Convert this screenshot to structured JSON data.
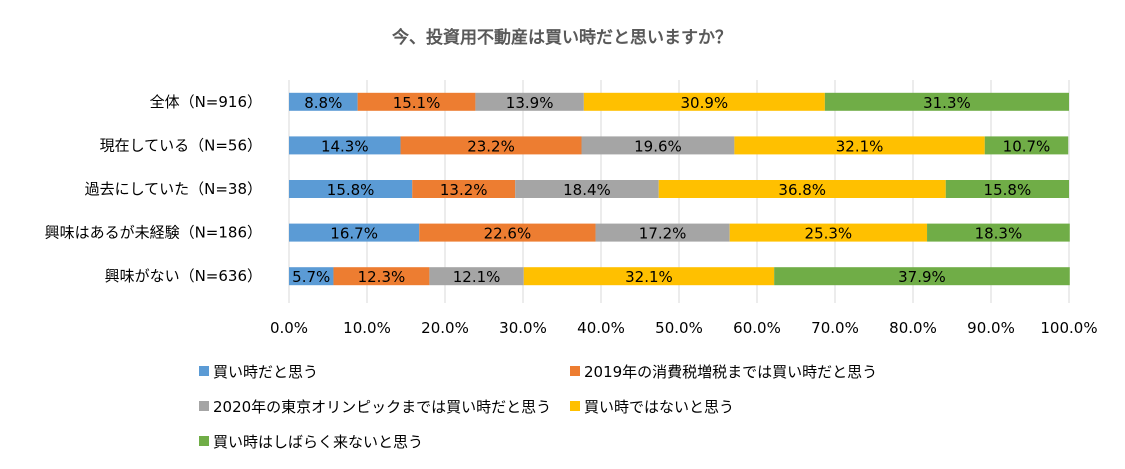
{
  "chart_data": {
    "type": "bar",
    "orientation": "horizontal",
    "stacked": true,
    "title": "今、投資用不動産は買い時だと思いますか？",
    "categories": [
      "全体（N=916）",
      "現在している（N=56）",
      "過去にしていた（N=38）",
      "興味はあるが未経験（N=186）",
      "興味がない（N=636）"
    ],
    "series": [
      {
        "name": "買い時だと思う",
        "color": "#5b9bd5",
        "values": [
          8.8,
          14.3,
          15.8,
          16.7,
          5.7
        ]
      },
      {
        "name": "2019年の消費税増税までは買い時だと思う",
        "color": "#ed7d31",
        "values": [
          15.1,
          23.2,
          13.2,
          22.6,
          12.3
        ]
      },
      {
        "name": "2020年の東京オリンピックまでは買い時だと思う",
        "color": "#a5a5a5",
        "values": [
          13.9,
          19.6,
          18.4,
          17.2,
          12.1
        ]
      },
      {
        "name": "買い時ではないと思う",
        "color": "#ffc000",
        "values": [
          30.9,
          32.1,
          36.8,
          25.3,
          32.1
        ]
      },
      {
        "name": "買い時はしばらく来ないと思う",
        "color": "#70ad47",
        "values": [
          31.3,
          10.7,
          15.8,
          18.3,
          37.9
        ]
      }
    ],
    "value_format": "percent_1dp",
    "xlim": [
      0,
      100
    ],
    "xticks": [
      "0.0%",
      "10.0%",
      "20.0%",
      "30.0%",
      "40.0%",
      "50.0%",
      "60.0%",
      "70.0%",
      "80.0%",
      "90.0%",
      "100.0%"
    ],
    "grid": true,
    "legend_position": "bottom"
  }
}
